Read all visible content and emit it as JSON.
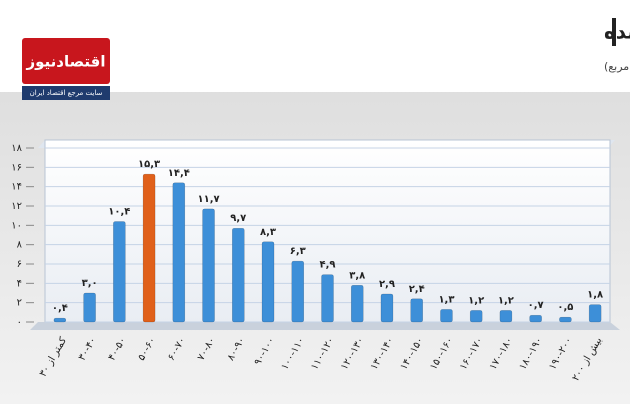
{
  "chart_data": {
    "type": "bar",
    "title": "توزیع فراوانی تعداد واحدهای مسکونی معامله شده",
    "subtitle": "برحسب سطح زیربنا (متر مربع)",
    "logo": {
      "name": "اقتصادنیوز",
      "tagline": "سایت مرجع اقتصاد ایران"
    },
    "categories": [
      "کمتر از ۳۰",
      "۳۰-۴۰",
      "۴۰-۵۰",
      "۵۰-۶۰",
      "۶۰-۷۰",
      "۷۰-۸۰",
      "۸۰-۹۰",
      "۹۰-۱۰۰",
      "۱۰۰-۱۱۰",
      "۱۱۰-۱۲۰",
      "۱۲۰-۱۳۰",
      "۱۳۰-۱۴۰",
      "۱۴۰-۱۵۰",
      "۱۵۰-۱۶۰",
      "۱۶۰-۱۷۰",
      "۱۷۰-۱۸۰",
      "۱۸۰-۱۹۰",
      "۱۹۰-۲۰۰",
      "بیش از ۲۰۰"
    ],
    "values": [
      0.4,
      3.0,
      10.4,
      15.3,
      14.4,
      11.7,
      9.7,
      8.3,
      6.3,
      4.9,
      3.8,
      2.9,
      2.4,
      1.3,
      1.2,
      1.2,
      0.7,
      0.5,
      1.8
    ],
    "value_labels": [
      "۰,۴",
      "۳,۰",
      "۱۰,۴",
      "۱۵,۳",
      "۱۴,۴",
      "۱۱,۷",
      "۹,۷",
      "۸,۳",
      "۶,۳",
      "۴,۹",
      "۳,۸",
      "۲,۹",
      "۲,۴",
      "۱,۳",
      "۱,۲",
      "۱,۲",
      "۰,۷",
      "۰,۵",
      "۱,۸"
    ],
    "colors": [
      "#3d8fd8",
      "#3d8fd8",
      "#3d8fd8",
      "#e0601a",
      "#3d8fd8",
      "#3d8fd8",
      "#3d8fd8",
      "#3d8fd8",
      "#3d8fd8",
      "#3d8fd8",
      "#3d8fd8",
      "#3d8fd8",
      "#3d8fd8",
      "#3d8fd8",
      "#3d8fd8",
      "#3d8fd8",
      "#3d8fd8",
      "#3d8fd8",
      "#3d8fd8"
    ],
    "ylim": [
      0,
      18
    ],
    "yticks": [
      {
        "value": 0,
        "label": "۰"
      },
      {
        "value": 2,
        "label": "۲"
      },
      {
        "value": 4,
        "label": "۴"
      },
      {
        "value": 6,
        "label": "۶"
      },
      {
        "value": 8,
        "label": "۸"
      },
      {
        "value": 10,
        "label": "۱۰"
      },
      {
        "value": 12,
        "label": "۱۲"
      },
      {
        "value": 14,
        "label": "۱۴"
      },
      {
        "value": 16,
        "label": "۱۶"
      },
      {
        "value": 18,
        "label": "۱۸"
      }
    ],
    "grid": true
  }
}
